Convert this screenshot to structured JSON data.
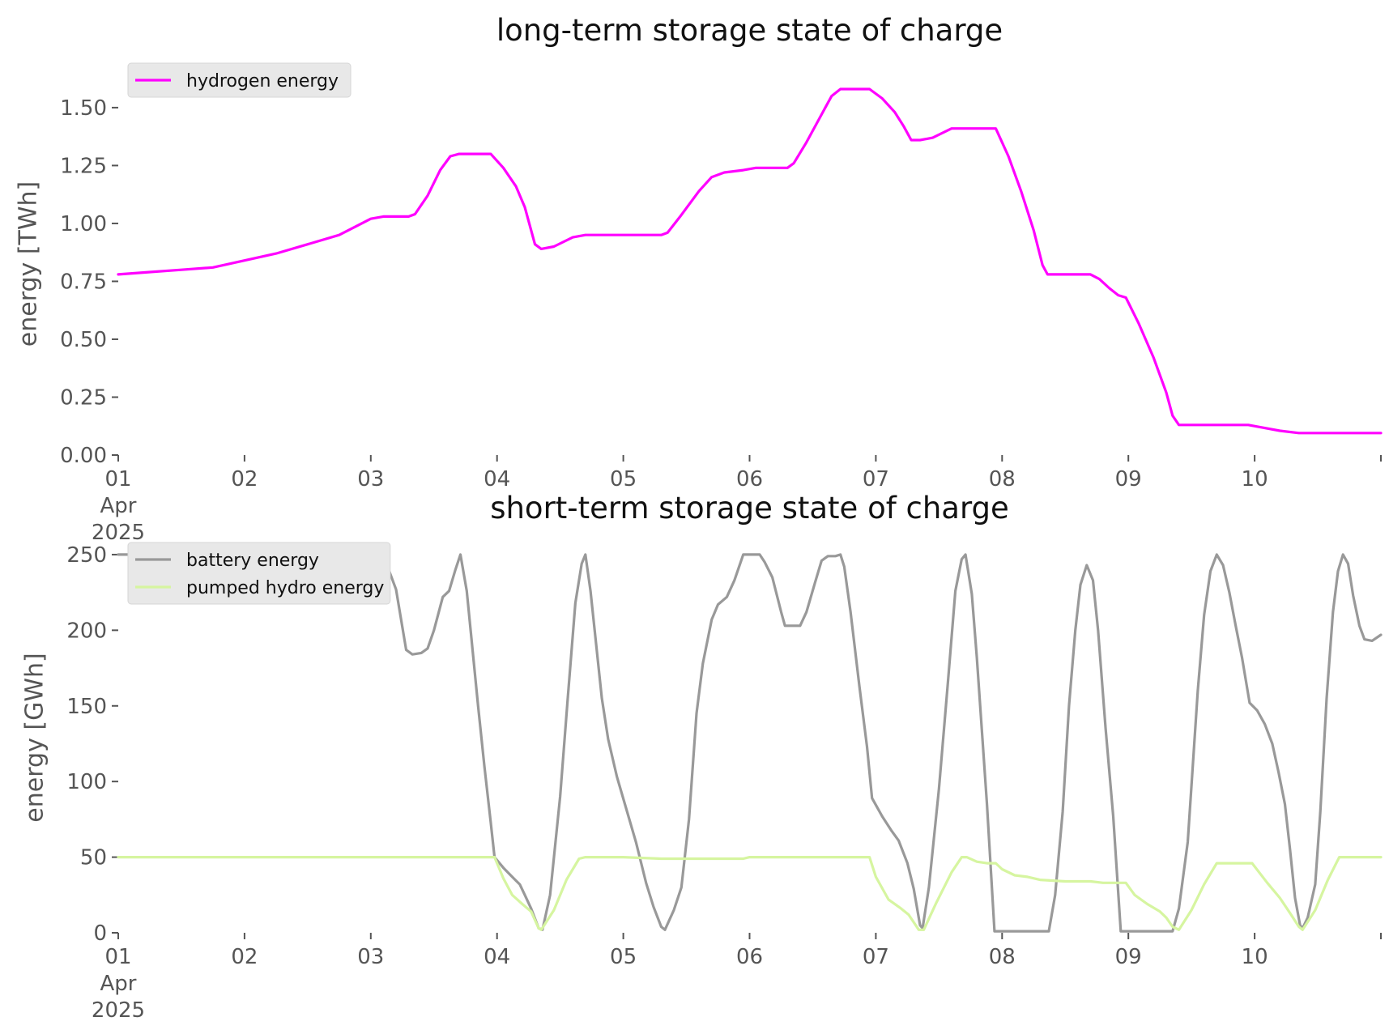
{
  "chart_data": [
    {
      "type": "line",
      "title": "long-term storage state of charge",
      "ylabel": "energy [TWh]",
      "xlabel": "",
      "x_unit": "day of April 2025 (fractional)",
      "xlim": [
        1,
        11
      ],
      "ylim": [
        0,
        1.65
      ],
      "yticks": [
        "0.00",
        "0.25",
        "0.50",
        "0.75",
        "1.00",
        "1.25",
        "1.50"
      ],
      "ytick_values": [
        0,
        0.25,
        0.5,
        0.75,
        1.0,
        1.25,
        1.5
      ],
      "xticks": [
        "01\nApr\n2025",
        "02",
        "03",
        "04",
        "05",
        "06",
        "07",
        "08",
        "09",
        "10"
      ],
      "grid": false,
      "legend": "top-left",
      "series": [
        {
          "name": "hydrogen energy",
          "color": "#ff00ff",
          "points": [
            [
              1.0,
              0.78
            ],
            [
              1.25,
              0.79
            ],
            [
              1.5,
              0.8
            ],
            [
              1.75,
              0.81
            ],
            [
              2.0,
              0.84
            ],
            [
              2.25,
              0.87
            ],
            [
              2.5,
              0.91
            ],
            [
              2.75,
              0.95
            ],
            [
              3.0,
              1.02
            ],
            [
              3.1,
              1.03
            ],
            [
              3.3,
              1.03
            ],
            [
              3.35,
              1.04
            ],
            [
              3.45,
              1.12
            ],
            [
              3.55,
              1.23
            ],
            [
              3.63,
              1.29
            ],
            [
              3.7,
              1.3
            ],
            [
              3.95,
              1.3
            ],
            [
              4.05,
              1.24
            ],
            [
              4.15,
              1.16
            ],
            [
              4.22,
              1.07
            ],
            [
              4.3,
              0.91
            ],
            [
              4.35,
              0.89
            ],
            [
              4.45,
              0.9
            ],
            [
              4.6,
              0.94
            ],
            [
              4.7,
              0.95
            ],
            [
              5.3,
              0.95
            ],
            [
              5.35,
              0.96
            ],
            [
              5.45,
              1.03
            ],
            [
              5.6,
              1.14
            ],
            [
              5.7,
              1.2
            ],
            [
              5.8,
              1.22
            ],
            [
              5.95,
              1.23
            ],
            [
              6.05,
              1.24
            ],
            [
              6.3,
              1.24
            ],
            [
              6.35,
              1.26
            ],
            [
              6.45,
              1.35
            ],
            [
              6.55,
              1.45
            ],
            [
              6.65,
              1.55
            ],
            [
              6.72,
              1.58
            ],
            [
              6.95,
              1.58
            ],
            [
              7.05,
              1.54
            ],
            [
              7.15,
              1.48
            ],
            [
              7.22,
              1.42
            ],
            [
              7.28,
              1.36
            ],
            [
              7.35,
              1.36
            ],
            [
              7.45,
              1.37
            ],
            [
              7.6,
              1.41
            ],
            [
              7.7,
              1.41
            ],
            [
              7.95,
              1.41
            ],
            [
              8.05,
              1.29
            ],
            [
              8.15,
              1.14
            ],
            [
              8.25,
              0.97
            ],
            [
              8.32,
              0.82
            ],
            [
              8.36,
              0.78
            ],
            [
              8.6,
              0.78
            ],
            [
              8.7,
              0.78
            ],
            [
              8.77,
              0.76
            ],
            [
              8.85,
              0.72
            ],
            [
              8.92,
              0.69
            ],
            [
              8.98,
              0.68
            ],
            [
              9.08,
              0.57
            ],
            [
              9.2,
              0.42
            ],
            [
              9.3,
              0.27
            ],
            [
              9.35,
              0.17
            ],
            [
              9.4,
              0.13
            ],
            [
              9.6,
              0.13
            ],
            [
              9.75,
              0.13
            ],
            [
              9.95,
              0.13
            ],
            [
              10.05,
              0.12
            ],
            [
              10.2,
              0.105
            ],
            [
              10.35,
              0.095
            ],
            [
              11.0,
              0.095
            ]
          ]
        }
      ]
    },
    {
      "type": "line",
      "title": "short-term storage state of charge",
      "ylabel": "energy [GWh]",
      "xlabel": "",
      "x_unit": "day of April 2025 (fractional)",
      "xlim": [
        1,
        11
      ],
      "ylim": [
        0,
        258
      ],
      "yticks": [
        "0",
        "50",
        "100",
        "150",
        "200",
        "250"
      ],
      "ytick_values": [
        0,
        50,
        100,
        150,
        200,
        250
      ],
      "xticks": [
        "01\nApr\n2025",
        "02",
        "03",
        "04",
        "05",
        "06",
        "07",
        "08",
        "09",
        "10"
      ],
      "grid": false,
      "legend": "top-left",
      "series": [
        {
          "name": "battery energy",
          "color": "#999999",
          "points": [
            [
              1.0,
              250
            ],
            [
              3.05,
              250
            ],
            [
              3.12,
              245
            ],
            [
              3.2,
              227
            ],
            [
              3.28,
              187
            ],
            [
              3.33,
              184
            ],
            [
              3.4,
              185
            ],
            [
              3.45,
              188
            ],
            [
              3.5,
              200
            ],
            [
              3.57,
              222
            ],
            [
              3.62,
              226
            ],
            [
              3.67,
              240
            ],
            [
              3.71,
              250
            ],
            [
              3.76,
              226
            ],
            [
              3.85,
              150
            ],
            [
              3.9,
              110
            ],
            [
              3.95,
              73
            ],
            [
              3.98,
              50
            ],
            [
              4.05,
              43
            ],
            [
              4.12,
              37
            ],
            [
              4.18,
              32
            ],
            [
              4.22,
              25
            ],
            [
              4.27,
              16
            ],
            [
              4.33,
              3
            ],
            [
              4.36,
              2
            ],
            [
              4.42,
              25
            ],
            [
              4.5,
              90
            ],
            [
              4.56,
              155
            ],
            [
              4.62,
              218
            ],
            [
              4.67,
              244
            ],
            [
              4.7,
              250
            ],
            [
              4.74,
              226
            ],
            [
              4.83,
              155
            ],
            [
              4.88,
              128
            ],
            [
              4.95,
              103
            ],
            [
              5.03,
              80
            ],
            [
              5.1,
              60
            ],
            [
              5.18,
              33
            ],
            [
              5.24,
              17
            ],
            [
              5.3,
              4
            ],
            [
              5.33,
              2
            ],
            [
              5.4,
              15
            ],
            [
              5.46,
              30
            ],
            [
              5.52,
              75
            ],
            [
              5.58,
              145
            ],
            [
              5.63,
              178
            ],
            [
              5.7,
              207
            ],
            [
              5.75,
              217
            ],
            [
              5.82,
              222
            ],
            [
              5.88,
              233
            ],
            [
              5.95,
              250
            ],
            [
              6.08,
              250
            ],
            [
              6.12,
              245
            ],
            [
              6.18,
              235
            ],
            [
              6.25,
              212
            ],
            [
              6.28,
              203
            ],
            [
              6.4,
              203
            ],
            [
              6.45,
              212
            ],
            [
              6.52,
              232
            ],
            [
              6.57,
              246
            ],
            [
              6.62,
              249
            ],
            [
              6.68,
              249
            ],
            [
              6.72,
              250
            ],
            [
              6.75,
              242
            ],
            [
              6.8,
              212
            ],
            [
              6.87,
              163
            ],
            [
              6.93,
              123
            ],
            [
              6.97,
              89
            ],
            [
              7.05,
              77
            ],
            [
              7.12,
              68
            ],
            [
              7.18,
              61
            ],
            [
              7.25,
              46
            ],
            [
              7.3,
              29
            ],
            [
              7.35,
              5
            ],
            [
              7.37,
              3
            ],
            [
              7.42,
              30
            ],
            [
              7.5,
              95
            ],
            [
              7.57,
              165
            ],
            [
              7.63,
              226
            ],
            [
              7.68,
              247
            ],
            [
              7.71,
              250
            ],
            [
              7.76,
              224
            ],
            [
              7.8,
              182
            ],
            [
              7.88,
              85
            ],
            [
              7.94,
              1
            ],
            [
              8.37,
              1
            ],
            [
              8.42,
              25
            ],
            [
              8.48,
              80
            ],
            [
              8.53,
              150
            ],
            [
              8.58,
              200
            ],
            [
              8.62,
              230
            ],
            [
              8.67,
              243
            ],
            [
              8.72,
              233
            ],
            [
              8.76,
              200
            ],
            [
              8.82,
              135
            ],
            [
              8.88,
              77
            ],
            [
              8.94,
              1
            ],
            [
              9.35,
              1
            ],
            [
              9.4,
              16
            ],
            [
              9.47,
              60
            ],
            [
              9.55,
              160
            ],
            [
              9.6,
              210
            ],
            [
              9.65,
              239
            ],
            [
              9.7,
              250
            ],
            [
              9.75,
              243
            ],
            [
              9.8,
              225
            ],
            [
              9.85,
              203
            ],
            [
              9.9,
              182
            ],
            [
              9.96,
              152
            ],
            [
              10.02,
              147
            ],
            [
              10.08,
              138
            ],
            [
              10.14,
              125
            ],
            [
              10.19,
              106
            ],
            [
              10.24,
              85
            ],
            [
              10.28,
              55
            ],
            [
              10.32,
              23
            ],
            [
              10.36,
              5
            ],
            [
              10.38,
              3
            ],
            [
              10.42,
              10
            ],
            [
              10.48,
              32
            ],
            [
              10.52,
              80
            ],
            [
              10.57,
              155
            ],
            [
              10.62,
              212
            ],
            [
              10.66,
              239
            ],
            [
              10.7,
              250
            ],
            [
              10.74,
              244
            ],
            [
              10.78,
              223
            ],
            [
              10.83,
              203
            ],
            [
              10.87,
              194
            ],
            [
              10.93,
              193
            ],
            [
              11.0,
              197
            ]
          ]
        },
        {
          "name": "pumped hydro energy",
          "color": "#d6f5a0",
          "points": [
            [
              1.0,
              50
            ],
            [
              3.98,
              50
            ],
            [
              4.05,
              36
            ],
            [
              4.12,
              25
            ],
            [
              4.2,
              19
            ],
            [
              4.27,
              14
            ],
            [
              4.33,
              3
            ],
            [
              4.35,
              2
            ],
            [
              4.45,
              15
            ],
            [
              4.55,
              35
            ],
            [
              4.65,
              49
            ],
            [
              4.7,
              50
            ],
            [
              5.0,
              50
            ],
            [
              5.3,
              49
            ],
            [
              5.95,
              49
            ],
            [
              6.0,
              50
            ],
            [
              6.95,
              50
            ],
            [
              7.0,
              37
            ],
            [
              7.1,
              22
            ],
            [
              7.2,
              16
            ],
            [
              7.26,
              12
            ],
            [
              7.34,
              2
            ],
            [
              7.38,
              2
            ],
            [
              7.48,
              20
            ],
            [
              7.6,
              40
            ],
            [
              7.68,
              50
            ],
            [
              7.72,
              50
            ],
            [
              7.8,
              47
            ],
            [
              7.88,
              46
            ],
            [
              7.95,
              46
            ],
            [
              8.0,
              42
            ],
            [
              8.1,
              38
            ],
            [
              8.2,
              37
            ],
            [
              8.3,
              35
            ],
            [
              8.5,
              34
            ],
            [
              8.7,
              34
            ],
            [
              8.8,
              33
            ],
            [
              8.98,
              33
            ],
            [
              9.05,
              25
            ],
            [
              9.15,
              19
            ],
            [
              9.25,
              14
            ],
            [
              9.3,
              10
            ],
            [
              9.35,
              4
            ],
            [
              9.4,
              2
            ],
            [
              9.5,
              15
            ],
            [
              9.6,
              32
            ],
            [
              9.7,
              46
            ],
            [
              9.78,
              46
            ],
            [
              9.98,
              46
            ],
            [
              10.1,
              33
            ],
            [
              10.2,
              23
            ],
            [
              10.28,
              13
            ],
            [
              10.35,
              4
            ],
            [
              10.38,
              2
            ],
            [
              10.48,
              15
            ],
            [
              10.58,
              35
            ],
            [
              10.67,
              50
            ],
            [
              11.0,
              50
            ]
          ]
        }
      ]
    }
  ]
}
